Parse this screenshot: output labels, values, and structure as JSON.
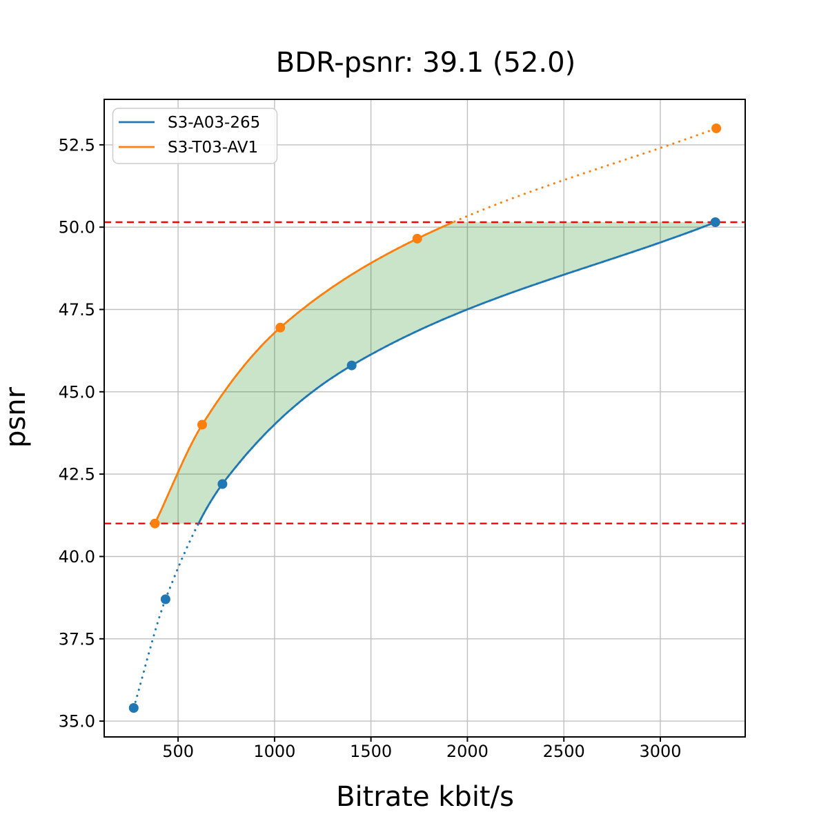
{
  "chart_data": {
    "type": "line",
    "title": "BDR-psnr: 39.1 (52.0)",
    "xlabel": "Bitrate kbit/s",
    "ylabel": "psnr",
    "xlim": [
      117,
      3440
    ],
    "ylim": [
      34.52,
      53.88
    ],
    "xticks": [
      500,
      1000,
      1500,
      2000,
      2500,
      3000
    ],
    "xtick_labels": [
      "500",
      "1000",
      "1500",
      "2000",
      "2500",
      "3000"
    ],
    "yticks": [
      35.0,
      37.5,
      40.0,
      42.5,
      45.0,
      47.5,
      50.0,
      52.5
    ],
    "ytick_labels": [
      "35.0",
      "37.5",
      "40.0",
      "42.5",
      "45.0",
      "47.5",
      "50.0",
      "52.5"
    ],
    "grid": true,
    "grid_color": "#bfbfbf",
    "legend_position": "upper-left",
    "series": [
      {
        "name": "S3-A03-265",
        "color": "#1f77b4",
        "marker": "circle",
        "x": [
          270,
          435,
          730,
          1400,
          3285
        ],
        "y": [
          35.4,
          38.7,
          42.2,
          45.8,
          50.15
        ]
      },
      {
        "name": "S3-T03-AV1",
        "color": "#ff7f0e",
        "marker": "circle",
        "x": [
          380,
          625,
          1030,
          1740,
          3290
        ],
        "y": [
          41.0,
          44.0,
          46.95,
          49.65,
          53.0
        ]
      }
    ],
    "overlap_interval_psnr": [
      41.0,
      50.15
    ],
    "overlap_line_color": "#ff0000",
    "overlap_line_style": "dashed",
    "shaded_region": {
      "fill": "#008000",
      "opacity": 0.21
    }
  }
}
